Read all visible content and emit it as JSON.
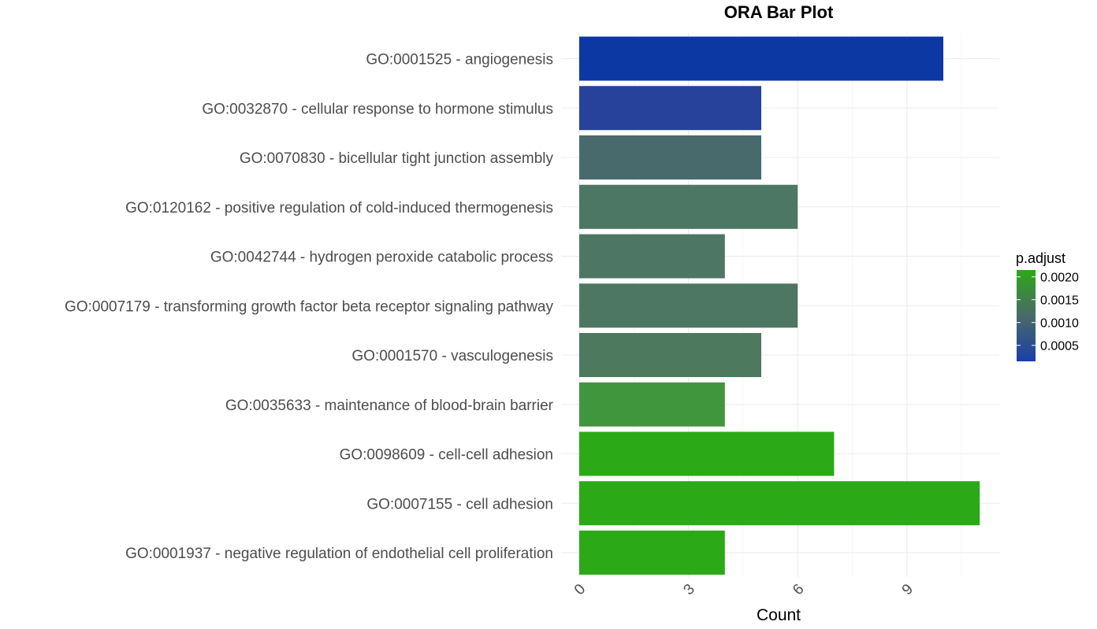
{
  "chart_data": {
    "type": "bar",
    "orientation": "horizontal",
    "title": "ORA Bar Plot",
    "xlabel": "Count",
    "ylabel": "",
    "xlim": [
      0,
      11.5
    ],
    "xticks": [
      0,
      3,
      6,
      9
    ],
    "grid": true,
    "legend": {
      "title": "p.adjust",
      "placement": "right",
      "ticks": [
        0.0005,
        0.001,
        0.0015,
        0.002
      ],
      "tick_labels": [
        "0.0005",
        "0.0010",
        "0.0015",
        "0.0020"
      ],
      "range": [
        0.00015,
        0.00215
      ],
      "low_color": "#1a3fa8",
      "mid_color": "#4a6a6a",
      "high_color": "#2ca816"
    },
    "categories": [
      "GO:0001525 - angiogenesis",
      "GO:0032870 - cellular response to hormone stimulus",
      "GO:0070830 - bicellular tight junction assembly",
      "GO:0120162 - positive regulation of cold-induced thermogenesis",
      "GO:0042744 - hydrogen peroxide catabolic process",
      "GO:0007179 - transforming growth factor beta receptor signaling pathway",
      "GO:0001570 - vasculogenesis",
      "GO:0035633 - maintenance of blood-brain barrier",
      "GO:0098609 - cell-cell adhesion",
      "GO:0007155 - cell adhesion",
      "GO:0001937 - negative regulation of endothelial cell proliferation"
    ],
    "values": [
      10,
      5,
      5,
      6,
      4,
      6,
      5,
      4,
      7,
      11,
      4
    ],
    "bar_colors": [
      "#0b38a2",
      "#26429b",
      "#486a6d",
      "#4d7765",
      "#4d7764",
      "#4d7763",
      "#4d7a5f",
      "#40963c",
      "#2ba917",
      "#2ba917",
      "#2ba917"
    ]
  }
}
